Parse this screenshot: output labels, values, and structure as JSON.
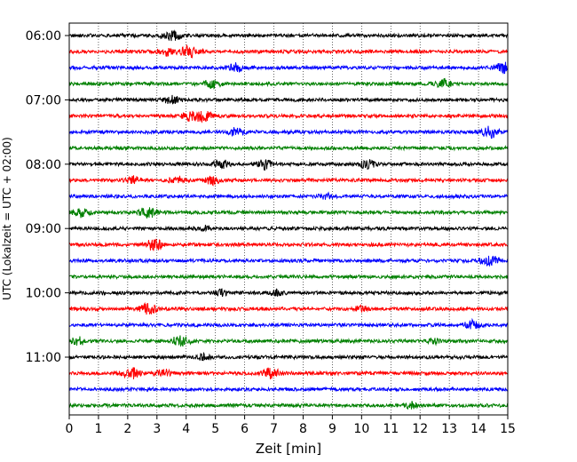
{
  "chart_data": {
    "type": "line",
    "xlabel": "Zeit  [min]",
    "ylabel": "UTC (Lokalzeit = UTC + 02:00)",
    "xlim": [
      0,
      15
    ],
    "xticks": [
      0,
      1,
      2,
      3,
      4,
      5,
      6,
      7,
      8,
      9,
      10,
      11,
      12,
      13,
      14,
      15
    ],
    "grid": "vertical dotted at each minute",
    "row_interval_min": 15,
    "colors": [
      "#000000",
      "#ff0000",
      "#0000ff",
      "#008000"
    ],
    "y_ticks": [
      {
        "label": "06:00",
        "row": 0
      },
      {
        "label": "07:00",
        "row": 4
      },
      {
        "label": "08:00",
        "row": 8
      },
      {
        "label": "09:00",
        "row": 12
      },
      {
        "label": "10:00",
        "row": 16
      },
      {
        "label": "11:00",
        "row": 20
      }
    ],
    "traces": [
      {
        "start": "06:00",
        "color": "#000000",
        "bursts": [
          {
            "t": 3.5,
            "amp": 3
          }
        ]
      },
      {
        "start": "06:15",
        "color": "#ff0000",
        "bursts": [
          {
            "t": 3.3,
            "amp": 2
          },
          {
            "t": 4.1,
            "amp": 3
          }
        ]
      },
      {
        "start": "06:30",
        "color": "#0000ff",
        "bursts": [
          {
            "t": 5.7,
            "amp": 2
          },
          {
            "t": 14.9,
            "amp": 3
          }
        ]
      },
      {
        "start": "06:45",
        "color": "#008000",
        "bursts": [
          {
            "t": 4.9,
            "amp": 2
          },
          {
            "t": 12.8,
            "amp": 2
          }
        ]
      },
      {
        "start": "07:00",
        "color": "#000000",
        "bursts": [
          {
            "t": 3.5,
            "amp": 2
          }
        ]
      },
      {
        "start": "07:15",
        "color": "#ff0000",
        "bursts": [
          {
            "t": 4.1,
            "amp": 2
          },
          {
            "t": 4.6,
            "amp": 3
          }
        ]
      },
      {
        "start": "07:30",
        "color": "#0000ff",
        "bursts": [
          {
            "t": 5.7,
            "amp": 2
          },
          {
            "t": 14.4,
            "amp": 3
          }
        ]
      },
      {
        "start": "07:45",
        "color": "#008000",
        "bursts": []
      },
      {
        "start": "08:00",
        "color": "#000000",
        "bursts": [
          {
            "t": 5.2,
            "amp": 2
          },
          {
            "t": 6.7,
            "amp": 2
          },
          {
            "t": 10.2,
            "amp": 2
          }
        ]
      },
      {
        "start": "08:15",
        "color": "#ff0000",
        "bursts": [
          {
            "t": 2.2,
            "amp": 2
          },
          {
            "t": 3.7,
            "amp": 2
          },
          {
            "t": 4.9,
            "amp": 2
          }
        ]
      },
      {
        "start": "08:30",
        "color": "#0000ff",
        "bursts": [
          {
            "t": 8.8,
            "amp": 1
          }
        ]
      },
      {
        "start": "08:45",
        "color": "#008000",
        "bursts": [
          {
            "t": 0.4,
            "amp": 2
          },
          {
            "t": 2.7,
            "amp": 3
          }
        ]
      },
      {
        "start": "09:00",
        "color": "#000000",
        "bursts": [
          {
            "t": 4.6,
            "amp": 1
          }
        ]
      },
      {
        "start": "09:15",
        "color": "#ff0000",
        "bursts": [
          {
            "t": 2.9,
            "amp": 3
          }
        ]
      },
      {
        "start": "09:30",
        "color": "#0000ff",
        "bursts": [
          {
            "t": 14.4,
            "amp": 3
          }
        ]
      },
      {
        "start": "09:45",
        "color": "#008000",
        "bursts": []
      },
      {
        "start": "10:00",
        "color": "#000000",
        "bursts": [
          {
            "t": 5.2,
            "amp": 1
          },
          {
            "t": 7.1,
            "amp": 1
          }
        ]
      },
      {
        "start": "10:15",
        "color": "#ff0000",
        "bursts": [
          {
            "t": 2.7,
            "amp": 3
          },
          {
            "t": 10.0,
            "amp": 1
          }
        ]
      },
      {
        "start": "10:30",
        "color": "#0000ff",
        "bursts": [
          {
            "t": 13.8,
            "amp": 2
          }
        ]
      },
      {
        "start": "10:45",
        "color": "#008000",
        "bursts": [
          {
            "t": 0.3,
            "amp": 2
          },
          {
            "t": 3.8,
            "amp": 3
          },
          {
            "t": 12.5,
            "amp": 1
          }
        ]
      },
      {
        "start": "11:00",
        "color": "#000000",
        "bursts": [
          {
            "t": 4.6,
            "amp": 1
          }
        ]
      },
      {
        "start": "11:15",
        "color": "#ff0000",
        "bursts": [
          {
            "t": 2.1,
            "amp": 3
          },
          {
            "t": 3.2,
            "amp": 2
          },
          {
            "t": 6.9,
            "amp": 3
          }
        ]
      },
      {
        "start": "11:30",
        "color": "#0000ff",
        "bursts": []
      },
      {
        "start": "11:45",
        "color": "#008000",
        "bursts": [
          {
            "t": 11.7,
            "amp": 1
          }
        ]
      }
    ]
  }
}
